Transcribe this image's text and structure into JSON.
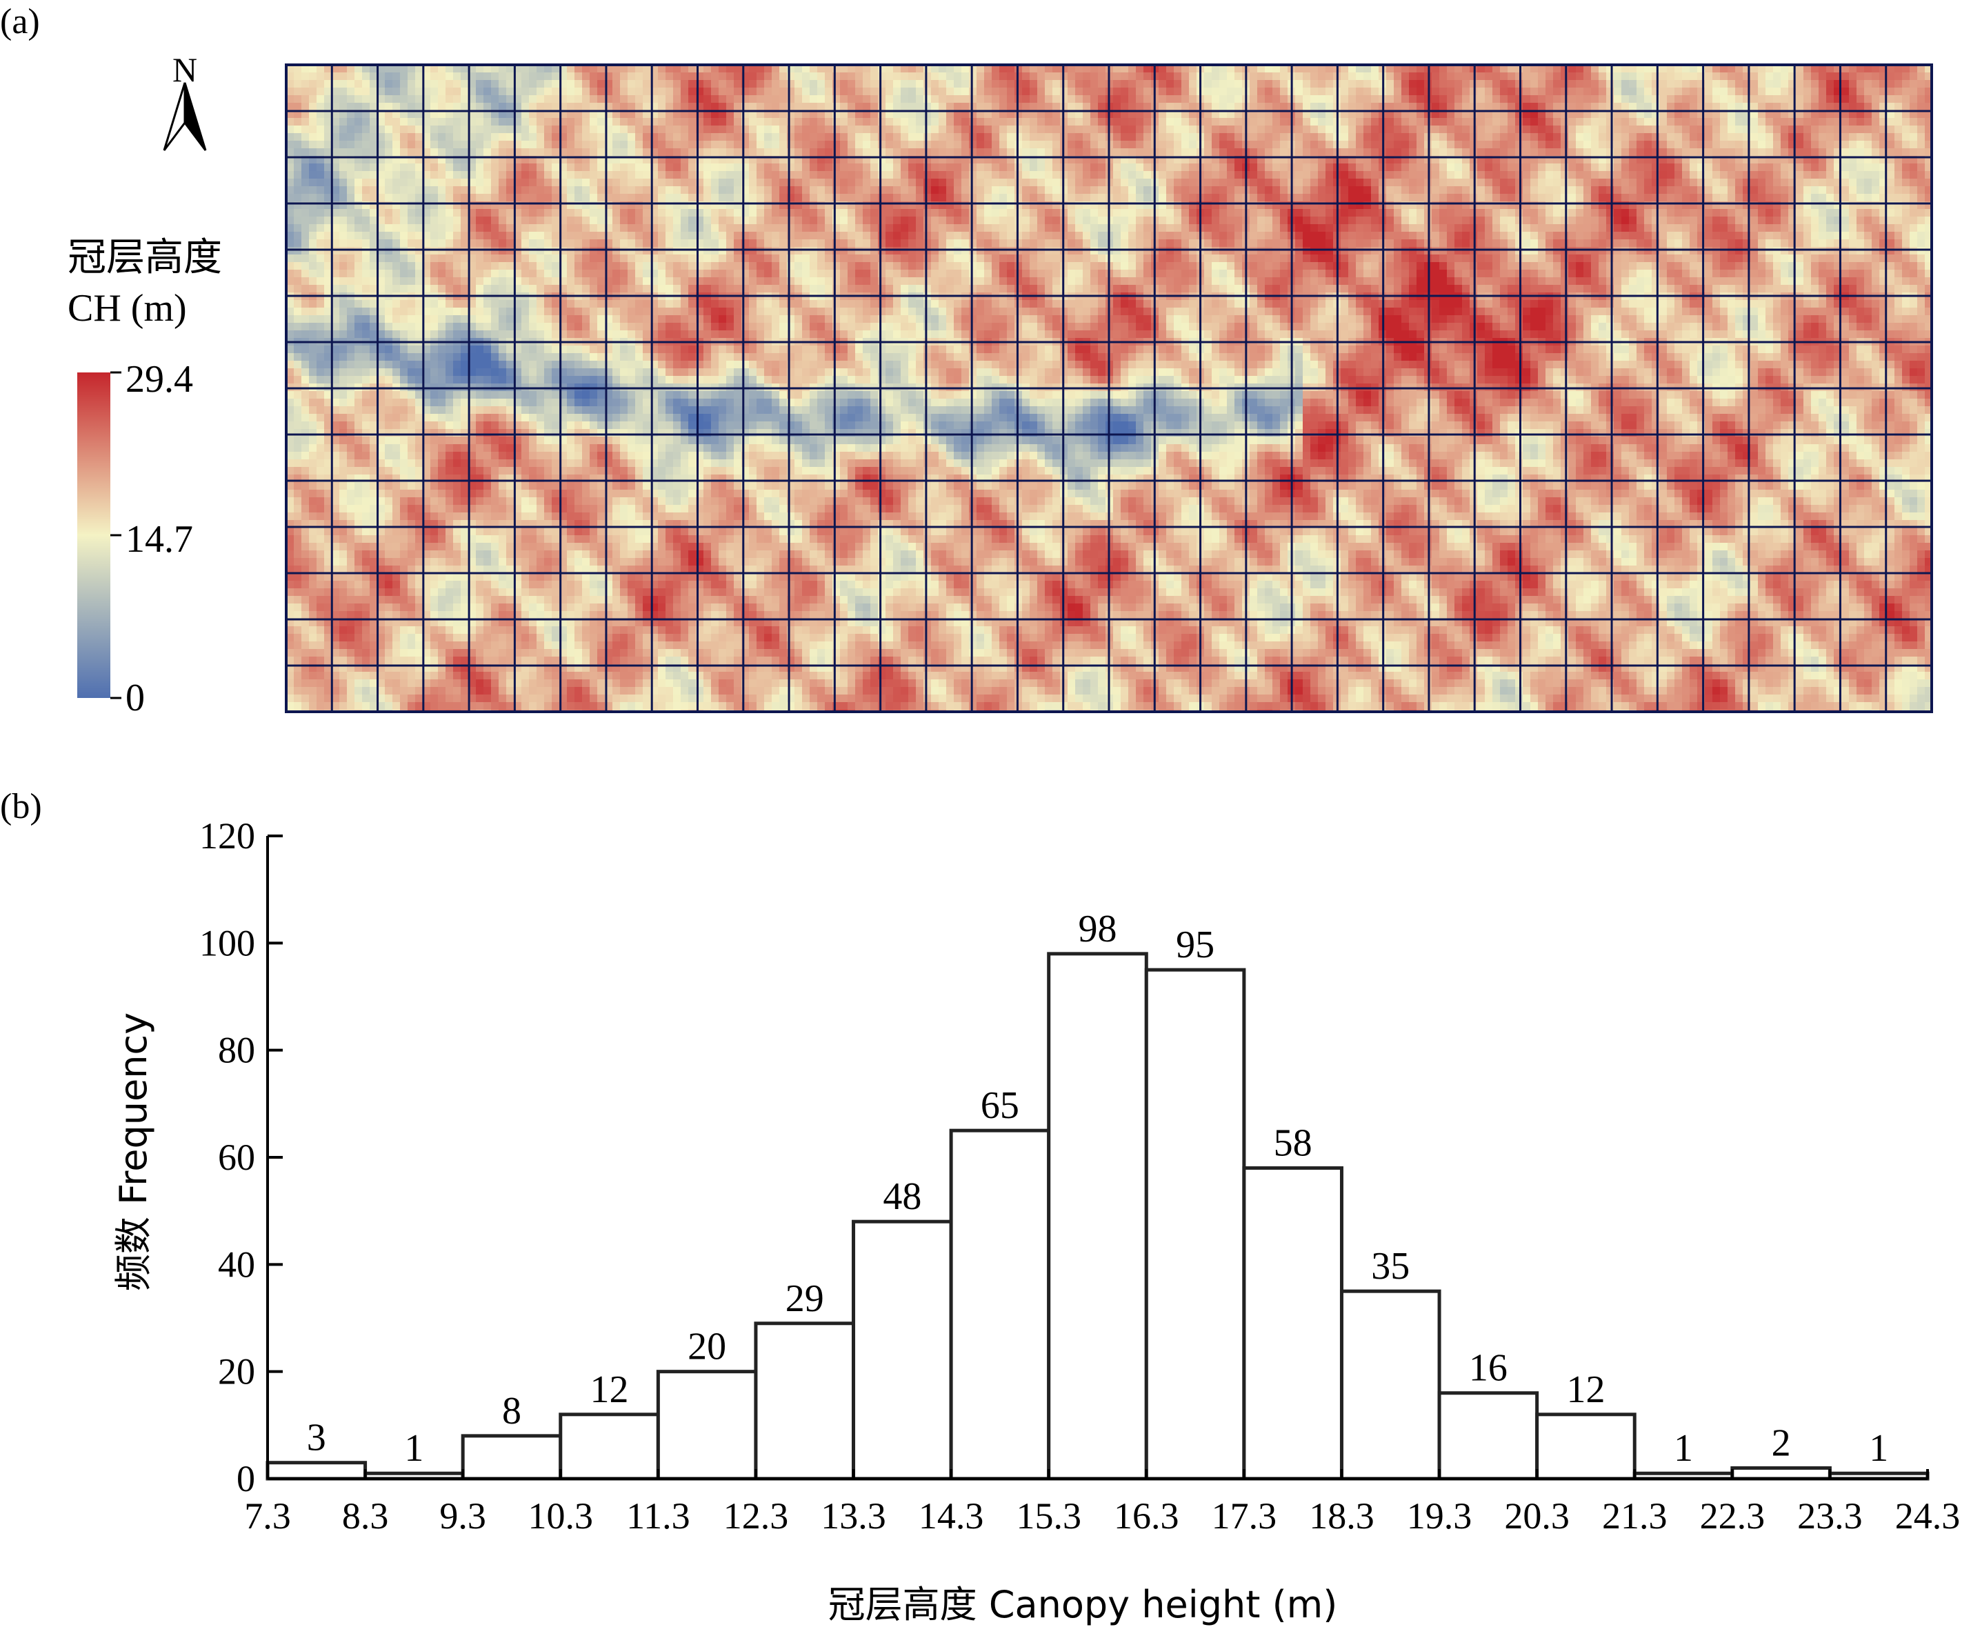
{
  "panel_a": {
    "label": "(a)",
    "north_label": "N",
    "legend_title_cn": "冠层高度",
    "legend_title_en": "CH (m)",
    "legend_ticks": [
      "29.4",
      "14.7",
      "0"
    ],
    "colors": {
      "low": "#4f6fb0",
      "mid": "#f4f2c4",
      "high": "#c5262c",
      "grid": "#0d1650"
    },
    "grid_columns": 36,
    "grid_rows": 14
  },
  "panel_b": {
    "label": "(b)"
  },
  "chart_data": {
    "type": "bar",
    "x_ticks": [
      "7.3",
      "8.3",
      "9.3",
      "10.3",
      "11.3",
      "12.3",
      "13.3",
      "14.3",
      "15.3",
      "16.3",
      "17.3",
      "18.3",
      "19.3",
      "20.3",
      "21.3",
      "22.3",
      "23.3",
      "24.3"
    ],
    "values": [
      3,
      1,
      8,
      12,
      20,
      29,
      48,
      65,
      98,
      95,
      58,
      35,
      16,
      12,
      1,
      2,
      1
    ],
    "value_labels": [
      "3",
      "1",
      "8",
      "12",
      "20",
      "29",
      "48",
      "65",
      "98",
      "95",
      "58",
      "35",
      "16",
      "12",
      "1",
      "2",
      "1"
    ],
    "y_ticks": [
      "0",
      "20",
      "40",
      "60",
      "80",
      "100",
      "120"
    ],
    "ylim": [
      0,
      120
    ],
    "xlim": [
      7.3,
      24.3
    ],
    "xlabel": "冠层高度 Canopy height (m)",
    "ylabel": "频数 Frequency",
    "grid": false
  }
}
